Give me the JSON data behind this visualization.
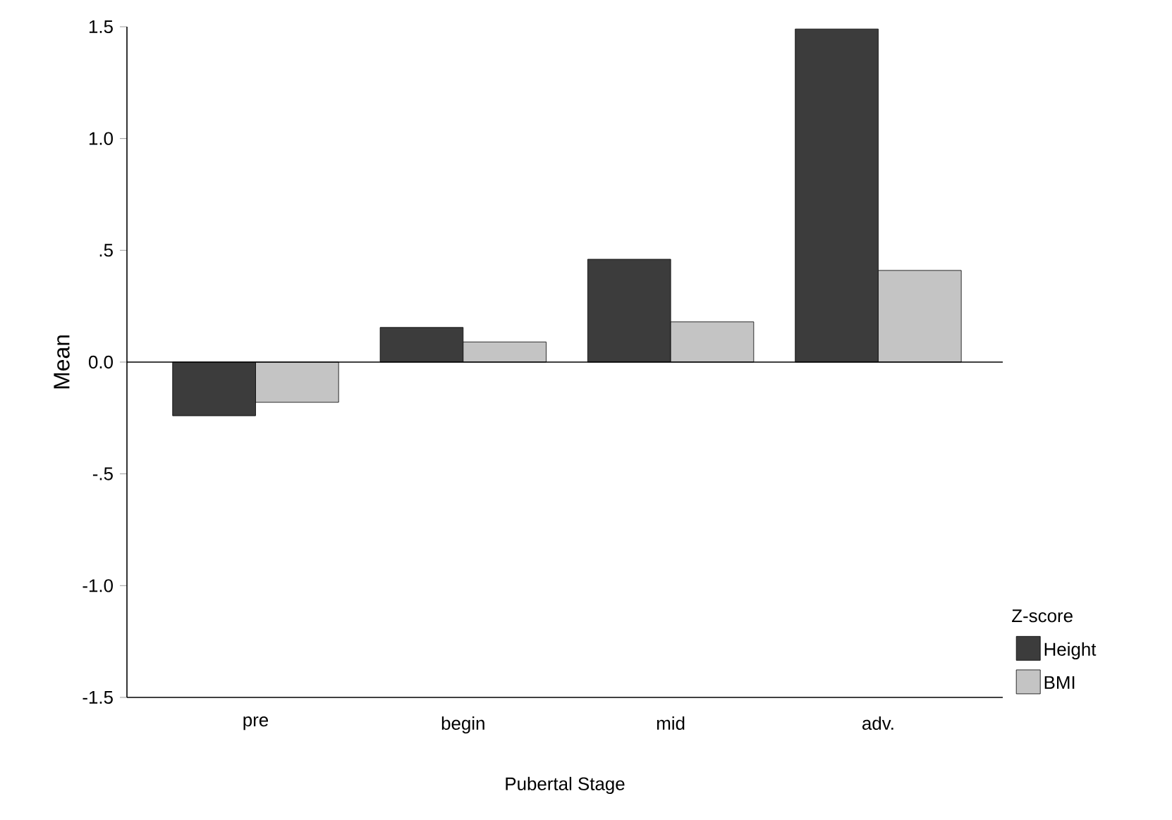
{
  "chart_data": {
    "type": "bar",
    "xlabel": "Pubertal Stage",
    "ylabel": "Mean",
    "legend_title": "Z-score",
    "categories": [
      "pre",
      "begin",
      "mid",
      "adv."
    ],
    "series": [
      {
        "name": "Height",
        "color": "#3c3c3c",
        "values": [
          -0.24,
          0.155,
          0.46,
          1.49
        ]
      },
      {
        "name": "BMI",
        "color": "#c4c4c4",
        "values": [
          -0.18,
          0.09,
          0.18,
          0.41
        ]
      }
    ],
    "ylim": [
      -1.5,
      1.5
    ],
    "yticks": [
      -1.5,
      {
        "value": -1.0,
        "label": "-1.0"
      },
      {
        "value": -0.5,
        "label": "-.5"
      },
      {
        "value": 0,
        "label": "0.0"
      },
      {
        "value": 0.5,
        "label": ".5"
      },
      {
        "value": 1.0,
        "label": "1.0"
      },
      1.5
    ],
    "ref_lines": [
      {
        "axis": "y",
        "value": 0
      }
    ],
    "grid": false,
    "legend": "bottom right"
  }
}
